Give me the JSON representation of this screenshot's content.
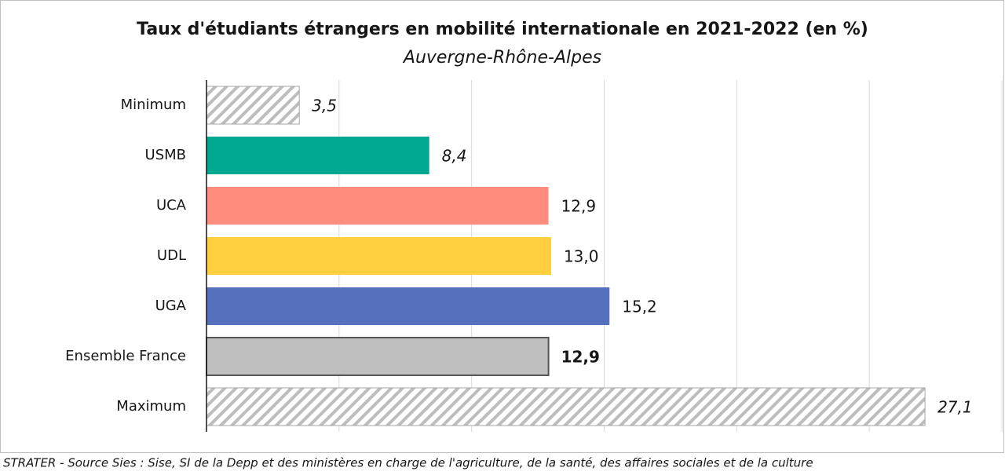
{
  "chart_data": {
    "type": "barh",
    "title": "Taux d'étudiants étrangers en mobilité internationale en 2021-2022 (en %)",
    "subtitle": "Auvergne-Rhône-Alpes",
    "source": "STRATER - Source Sies : Sise, SI de la Depp et des ministères en charge de l'agriculture, de la santé, des affaires sociales et de la culture",
    "categories": [
      "Minimum",
      "USMB",
      "UCA",
      "UDL",
      "UGA",
      "Ensemble France",
      "Maximum"
    ],
    "values": [
      3.5,
      8.4,
      12.9,
      13.0,
      15.2,
      12.9,
      27.1
    ],
    "value_labels": [
      "3,5",
      "8,4",
      "12,9",
      "13,0",
      "15,2",
      "12,9",
      "27,1"
    ],
    "colors": [
      "#a6a6a6",
      "#00a88f",
      "#ff8d7e",
      "#ffcf40",
      "#5770be",
      "#bfbfbf",
      "#a6a6a6"
    ],
    "patterns": [
      "hatch",
      "solid",
      "solid",
      "solid",
      "solid",
      "solid",
      "hatch"
    ],
    "label_styles": [
      "italic",
      "italic",
      "normal",
      "normal",
      "normal",
      "bold",
      "italic"
    ],
    "xlim": [
      0,
      30
    ],
    "xticks": [
      0,
      5,
      10,
      15,
      20,
      25,
      30
    ],
    "grid": true
  }
}
